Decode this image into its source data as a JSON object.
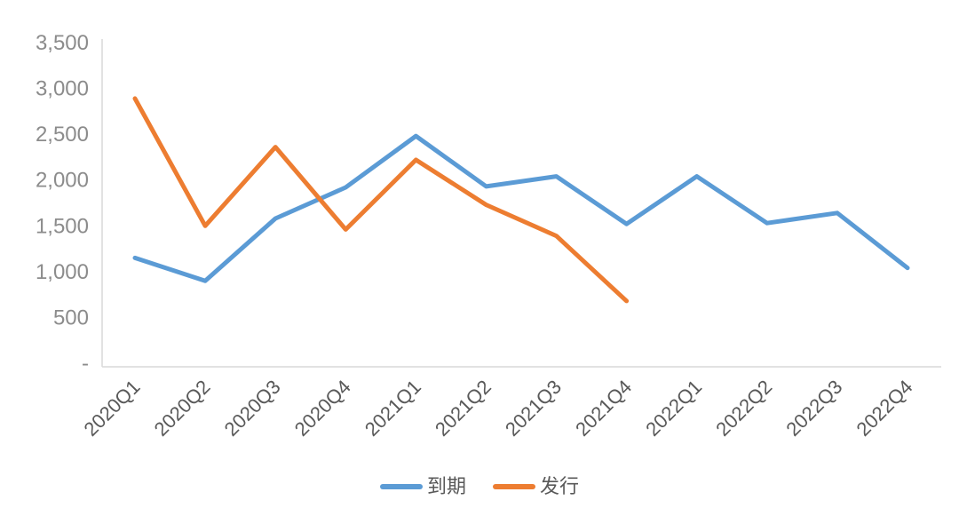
{
  "chart_data": {
    "type": "line",
    "categories": [
      "2020Q1",
      "2020Q2",
      "2020Q3",
      "2020Q4",
      "2021Q1",
      "2021Q2",
      "2021Q3",
      "2021Q4",
      "2022Q1",
      "2022Q2",
      "2022Q3",
      "2022Q4"
    ],
    "series": [
      {
        "name": "到期",
        "color": "#5B9BD5",
        "values": [
          1150,
          900,
          1580,
          1920,
          2480,
          1930,
          2040,
          1520,
          2040,
          1530,
          1640,
          1040
        ]
      },
      {
        "name": "发行",
        "color": "#ED7D31",
        "values": [
          2890,
          1500,
          2360,
          1460,
          2220,
          1730,
          1390,
          680,
          null,
          null,
          null,
          null
        ]
      }
    ],
    "title": "",
    "xlabel": "",
    "ylabel": "",
    "ylim": [
      0,
      3500
    ],
    "ytick_step": 500,
    "ytick_labels": [
      "-",
      "500",
      "1,000",
      "1,500",
      "2,000",
      "2,500",
      "3,000",
      "3,500"
    ],
    "grid": false,
    "legend_position": "bottom"
  },
  "colors": {
    "axis_line": "#d9d9d9",
    "ytick_text": "#8c8c8c",
    "xtick_text": "#595959",
    "legend_text": "#595959",
    "background": "#ffffff"
  }
}
